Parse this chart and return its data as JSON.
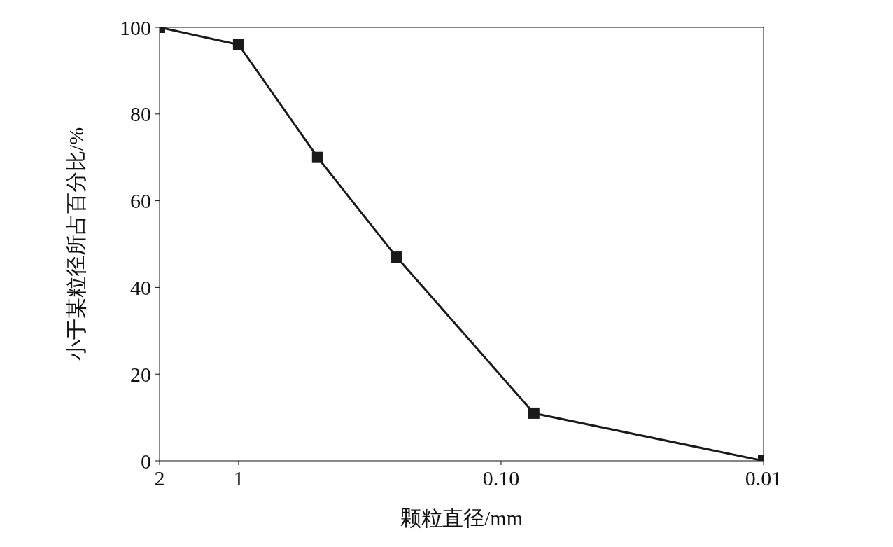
{
  "chart_data": {
    "type": "line",
    "xlabel": "颗粒直径/mm",
    "ylabel": "小于某粒径所占百分比/%",
    "x": [
      2,
      1,
      0.5,
      0.25,
      0.075,
      0.01
    ],
    "series": [
      {
        "color": "#1a1a1a",
        "values": [
          100,
          96,
          70,
          47,
          11,
          0
        ]
      }
    ],
    "log": "x",
    "xlim": [
      2,
      0.01
    ],
    "ylim": [
      0,
      100
    ],
    "xticks": [
      2,
      1,
      {
        "value": 0.1,
        "label": "0.10"
      },
      0.01
    ],
    "yticks": [
      0,
      20,
      40,
      60,
      80,
      100
    ],
    "marker": "square",
    "line_style": "solid"
  }
}
